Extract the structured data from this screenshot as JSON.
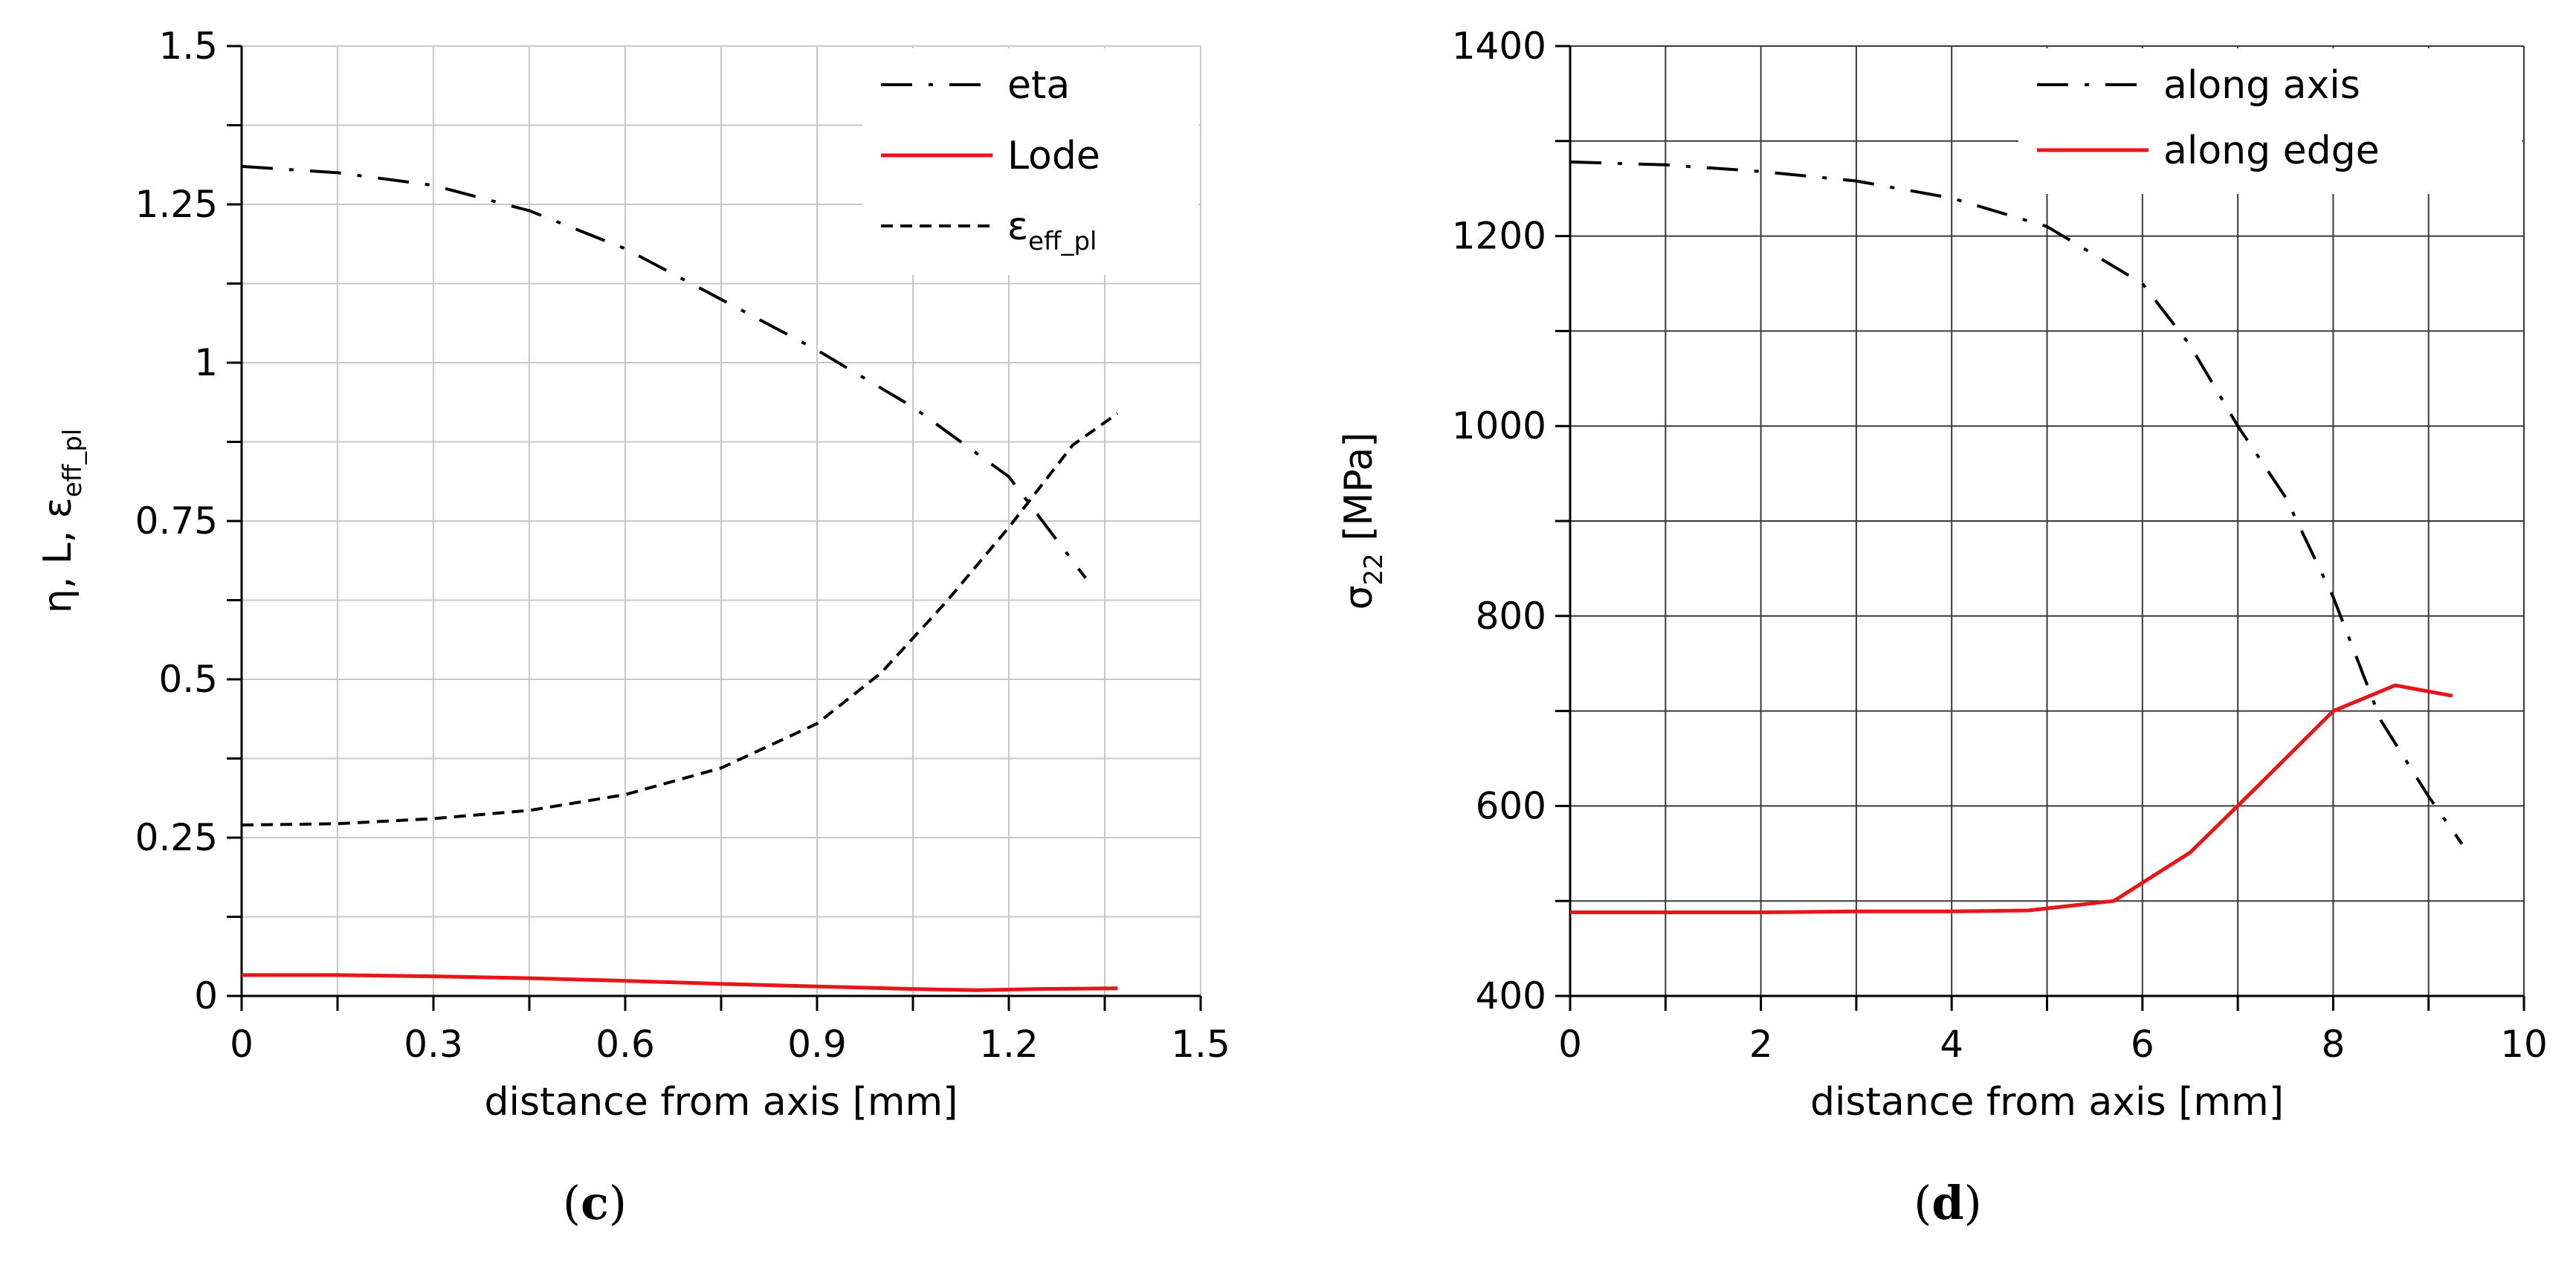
{
  "chart_data": [
    {
      "type": "line",
      "panel_label": {
        "open": "(",
        "letter": "c",
        "close": ")"
      },
      "xlabel": "distance from axis [mm]",
      "ylabel": {
        "main": "η, L, ε",
        "sub": "eff_pl"
      },
      "xlim": [
        0,
        1.5
      ],
      "ylim": [
        0,
        1.5
      ],
      "xticks": [
        0,
        0.3,
        0.6,
        0.9,
        1.2,
        1.5
      ],
      "xtick_labels": [
        "0",
        "0.3",
        "0.6",
        "0.9",
        "1.2",
        "1.5"
      ],
      "yticks": [
        0,
        0.25,
        0.5,
        0.75,
        1,
        1.25,
        1.5
      ],
      "ytick_labels": [
        "0",
        "0.25",
        "0.5",
        "0.75",
        "1",
        "1.25",
        "1.5"
      ],
      "grid": true,
      "legend_position": "top-right",
      "series": [
        {
          "name": "eta",
          "legend_main": "eta",
          "legend_sub": "",
          "color": "#000000",
          "dash": "dashdot",
          "x": [
            0,
            0.15,
            0.3,
            0.45,
            0.6,
            0.75,
            0.9,
            1.05,
            1.2,
            1.32
          ],
          "y": [
            1.31,
            1.3,
            1.28,
            1.24,
            1.18,
            1.1,
            1.02,
            0.93,
            0.82,
            0.66
          ]
        },
        {
          "name": "Lode",
          "legend_main": "Lode",
          "legend_sub": "",
          "color": "#e8161b",
          "dash": "solid",
          "x": [
            0,
            0.15,
            0.3,
            0.45,
            0.6,
            0.75,
            0.9,
            1.05,
            1.15,
            1.25,
            1.37
          ],
          "y": [
            0.033,
            0.033,
            0.031,
            0.028,
            0.024,
            0.019,
            0.015,
            0.011,
            0.009,
            0.011,
            0.012
          ]
        },
        {
          "name": "ε_eff_pl",
          "legend_main": "ε",
          "legend_sub": "eff_pl",
          "color": "#000000",
          "dash": "dashed",
          "x": [
            0,
            0.15,
            0.3,
            0.45,
            0.6,
            0.75,
            0.9,
            1.0,
            1.1,
            1.2,
            1.3,
            1.37
          ],
          "y": [
            0.27,
            0.272,
            0.28,
            0.293,
            0.318,
            0.36,
            0.43,
            0.51,
            0.62,
            0.74,
            0.87,
            0.92
          ]
        }
      ]
    },
    {
      "type": "line",
      "panel_label": {
        "open": "(",
        "letter": "d",
        "close": ")"
      },
      "xlabel": "distance from axis [mm]",
      "ylabel": {
        "main": "σ",
        "sub": "22",
        "rest": " [MPa]"
      },
      "xlim": [
        0,
        10
      ],
      "ylim": [
        400,
        1400
      ],
      "xticks": [
        0,
        2,
        4,
        6,
        8,
        10
      ],
      "xtick_labels": [
        "0",
        "2",
        "4",
        "6",
        "8",
        "10"
      ],
      "yticks": [
        400,
        600,
        800,
        1000,
        1200,
        1400
      ],
      "ytick_labels": [
        "400",
        "600",
        "800",
        "1000",
        "1200",
        "1400"
      ],
      "grid": true,
      "legend_position": "top-right",
      "series": [
        {
          "name": "along axis",
          "legend_main": "along axis",
          "legend_sub": "",
          "color": "#000000",
          "dash": "dashdot",
          "x": [
            0,
            1,
            2,
            3,
            4,
            5,
            6,
            6.5,
            7,
            7.5,
            8,
            8.5,
            9,
            9.35
          ],
          "y": [
            1278,
            1275,
            1268,
            1258,
            1240,
            1210,
            1150,
            1085,
            1000,
            925,
            820,
            690,
            610,
            560
          ]
        },
        {
          "name": "along edge",
          "legend_main": "along edge",
          "legend_sub": "",
          "color": "#e8161b",
          "dash": "solid",
          "x": [
            0,
            1,
            2,
            3,
            4,
            4.8,
            5.7,
            6.5,
            7.2,
            8.0,
            8.65,
            9.25
          ],
          "y": [
            488,
            488,
            488,
            489,
            489,
            490,
            500,
            551,
            620,
            700,
            727,
            716
          ]
        }
      ]
    }
  ]
}
